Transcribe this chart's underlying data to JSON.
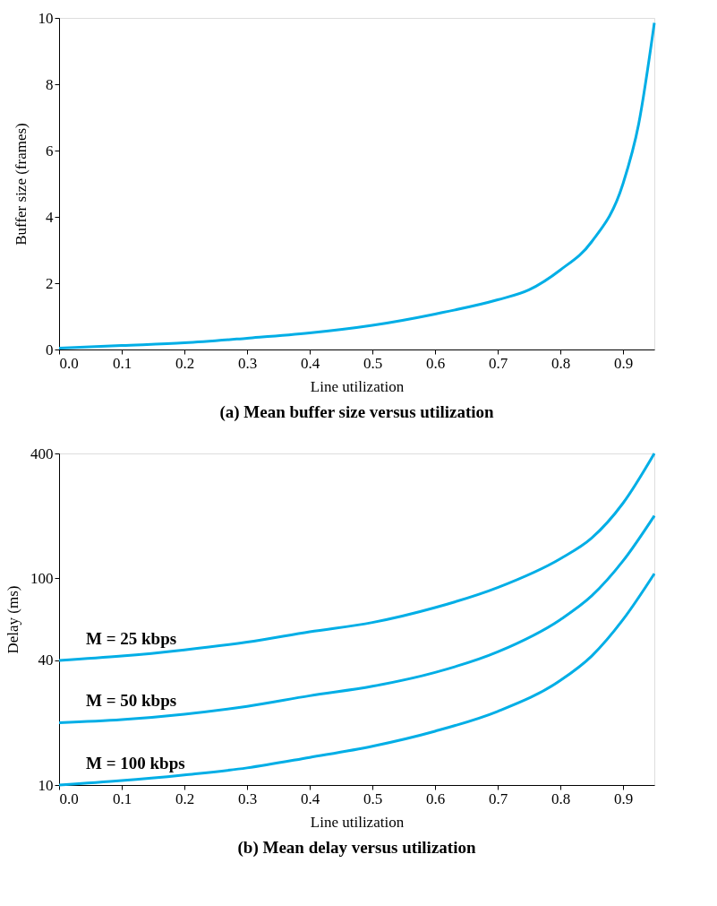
{
  "chart_data": [
    {
      "type": "line",
      "title": "(a) Mean buffer size versus utilization",
      "xlabel": "Line utilization",
      "ylabel": "Buffer size (frames)",
      "x": [
        0,
        0.1,
        0.2,
        0.3,
        0.4,
        0.5,
        0.6,
        0.7,
        0.75,
        0.8,
        0.85,
        0.9,
        0.925,
        0.95
      ],
      "series": [
        {
          "color": "#00aee6",
          "values": [
            0.04,
            0.12,
            0.2,
            0.34,
            0.5,
            0.73,
            1.07,
            1.5,
            1.8,
            2.4,
            3.25,
            5.0,
            6.8,
            9.85
          ]
        }
      ],
      "xlim": [
        0,
        0.95
      ],
      "xticks": [
        {
          "value": 0,
          "label": "0.0"
        },
        0.1,
        0.2,
        0.3,
        0.4,
        0.5,
        0.6,
        0.7,
        0.8,
        0.9
      ],
      "ylim": [
        0,
        10
      ],
      "yticks": [
        0,
        2,
        4,
        6,
        8,
        10
      ],
      "grid": false,
      "marker": "none",
      "line_style": "solid"
    },
    {
      "type": "line",
      "title": "(b) Mean delay versus utilization",
      "xlabel": "Line utilization",
      "ylabel": "Delay (ms)",
      "x": [
        0,
        0.1,
        0.2,
        0.3,
        0.4,
        0.5,
        0.6,
        0.7,
        0.8,
        0.85,
        0.9,
        0.95
      ],
      "series": [
        {
          "name": "M = 25 kbps",
          "color": "#00aee6",
          "values": [
            40,
            42,
            45,
            49,
            55,
            61,
            72,
            90,
            124,
            156,
            230,
            400
          ]
        },
        {
          "name": "M = 50 kbps",
          "color": "#00aee6",
          "values": [
            20,
            20.7,
            22,
            24,
            27,
            30,
            35,
            44,
            63,
            82,
            121,
            200
          ]
        },
        {
          "name": "M = 100 kbps",
          "color": "#00aee6",
          "values": [
            10,
            10.5,
            11.2,
            12.1,
            13.6,
            15.4,
            18.2,
            22.7,
            32,
            42,
            63,
            105
          ]
        }
      ],
      "xlim": [
        0,
        0.95
      ],
      "xticks": [
        {
          "value": 0,
          "label": "0.0"
        },
        0.1,
        0.2,
        0.3,
        0.4,
        0.5,
        0.6,
        0.7,
        0.8,
        0.9
      ],
      "ylim": [
        10,
        400
      ],
      "yticks": [
        10,
        40,
        100,
        400
      ],
      "log": "y",
      "grid": false,
      "marker": "none",
      "line_style": "solid"
    }
  ]
}
